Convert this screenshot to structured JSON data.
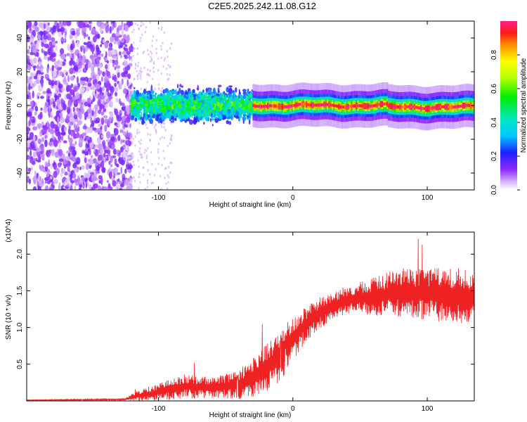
{
  "title": "C2E5.2025.242.11.08.G12",
  "chart_data": [
    {
      "type": "heatmap",
      "name": "spectrogram",
      "xlabel": "Height of straight line (km)",
      "ylabel": "Frequency (Hz)",
      "xlim": [
        -198,
        135
      ],
      "ylim": [
        -50,
        50
      ],
      "xticks": [
        -100,
        0,
        100
      ],
      "xtick_labels": [
        "-100",
        "0",
        "100"
      ],
      "yticks": [
        -40,
        -20,
        0,
        20,
        40
      ],
      "ytick_labels": [
        "-40",
        "-20",
        "0",
        "20",
        "40"
      ],
      "colorbar": {
        "label": "Normalized spectral amplitude",
        "range": [
          0,
          1
        ],
        "ticks": [
          0.0,
          0.2,
          0.4,
          0.6,
          0.8
        ],
        "tick_labels": [
          "0.0",
          "0.2",
          "0.4",
          "0.6",
          "0.8"
        ]
      },
      "regions": [
        {
          "description": "noise",
          "x_range": [
            -198,
            -120
          ],
          "freq_range": [
            -50,
            50
          ],
          "amplitude": 0.1
        },
        {
          "description": "onset",
          "x_range": [
            -120,
            -30
          ],
          "center_freq": 0,
          "half_width": 9,
          "amplitude": 0.35
        },
        {
          "description": "carrier",
          "x_range": [
            -30,
            135
          ],
          "center_freq": 0,
          "half_width": 4,
          "amplitude": 0.95
        }
      ]
    },
    {
      "type": "line",
      "name": "snr",
      "xlabel": "Height of straight line (km)",
      "ylabel": "SNR (10 * v/v)",
      "y_scale_label": "(x10^4)",
      "xlim": [
        -198,
        135
      ],
      "ylim": [
        0,
        2.3
      ],
      "xticks": [
        -100,
        0,
        100
      ],
      "xtick_labels": [
        "-100",
        "0",
        "100"
      ],
      "yticks": [
        0.5,
        1.0,
        1.5,
        2.0
      ],
      "ytick_labels": [
        "0.5",
        "1.0",
        "1.5",
        "2.0"
      ],
      "color": "#ee2222",
      "envelope": {
        "x": [
          -198,
          -125,
          -118,
          -100,
          -80,
          -60,
          -40,
          -30,
          -20,
          -10,
          0,
          10,
          20,
          40,
          60,
          80,
          100,
          120,
          135
        ],
        "mean": [
          0.01,
          0.02,
          0.06,
          0.12,
          0.2,
          0.18,
          0.22,
          0.3,
          0.45,
          0.6,
          0.85,
          1.05,
          1.2,
          1.38,
          1.42,
          1.48,
          1.46,
          1.44,
          1.42
        ],
        "spread": [
          0.004,
          0.01,
          0.05,
          0.1,
          0.14,
          0.12,
          0.16,
          0.22,
          0.28,
          0.3,
          0.25,
          0.2,
          0.18,
          0.16,
          0.22,
          0.28,
          0.3,
          0.32,
          0.3
        ]
      }
    }
  ]
}
